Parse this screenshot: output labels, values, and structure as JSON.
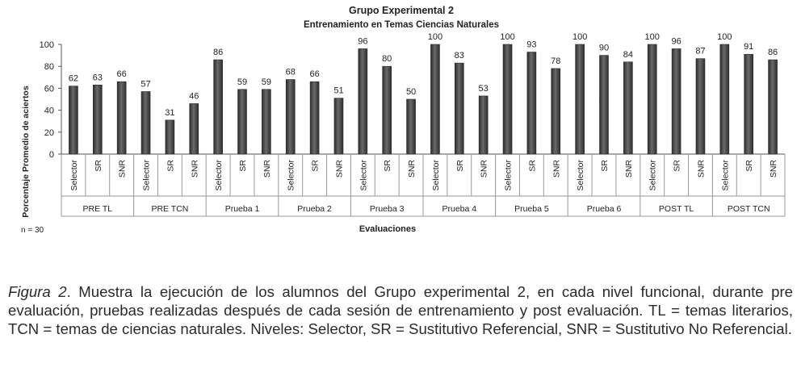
{
  "chart_data": {
    "type": "bar",
    "title": "Grupo Experimental 2",
    "subtitle": "Entrenamiento en Temas Ciencias Naturales",
    "xlabel": "Evaluaciones",
    "ylabel": "Porcentaje Promedio de aciertos",
    "ylim": [
      0,
      100
    ],
    "yticks": [
      0,
      20,
      40,
      60,
      80,
      100
    ],
    "groups": [
      "PRE TL",
      "PRE TCN",
      "Prueba 1",
      "Prueba 2",
      "Prueba 3",
      "Prueba 4",
      "Prueba 5",
      "Prueba 6",
      "POST TL",
      "POST TCN"
    ],
    "subcategories": [
      "Selector",
      "SR",
      "SNR"
    ],
    "values": [
      [
        62,
        63,
        66
      ],
      [
        57,
        31,
        46
      ],
      [
        86,
        59,
        59
      ],
      [
        68,
        66,
        51
      ],
      [
        96,
        80,
        50
      ],
      [
        100,
        83,
        53
      ],
      [
        100,
        93,
        78
      ],
      [
        100,
        90,
        84
      ],
      [
        100,
        96,
        87
      ],
      [
        100,
        91,
        86
      ]
    ],
    "note": "n = 30",
    "bar_color": "#4a4a4a"
  },
  "caption": {
    "label": "Figura 2",
    "text": ". Muestra la ejecución de los alumnos del Grupo experimental 2, en cada nivel funcional, durante pre evaluación, pruebas realizadas después de cada sesión de entrenamiento y post evaluación. TL = temas literarios, TCN = temas de ciencias naturales. Niveles: Selector, SR = Sustitutivo Referencial, SNR = Sustitutivo No Referencial."
  }
}
